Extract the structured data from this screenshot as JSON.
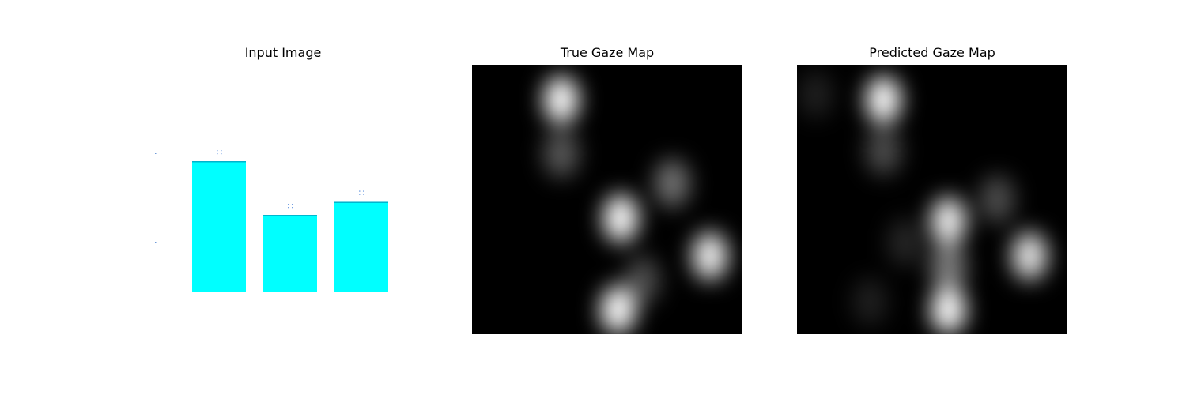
{
  "figure": {
    "titles": [
      "Input Image",
      "True Gaze Map",
      "Predicted Gaze Map"
    ]
  },
  "colors": {
    "bar_fill": "#00ffff",
    "bar_top_edge": "#00b3cc",
    "marker_blue": "#3a78d6",
    "heatmap_background": "#000000",
    "heatmap_hot": "#ffffff"
  },
  "chart_data": [
    {
      "type": "bar",
      "title": "Input Image",
      "categories": [
        "",
        "",
        ""
      ],
      "values": [
        1.0,
        0.59,
        0.69
      ],
      "axes_visible": false
    },
    {
      "type": "heatmap",
      "title": "True Gaze Map",
      "colormap": "gray",
      "blobs": [
        {
          "x": 0.33,
          "y": 0.13,
          "intensity": 1.0
        },
        {
          "x": 0.33,
          "y": 0.33,
          "intensity": 0.35
        },
        {
          "x": 0.55,
          "y": 0.57,
          "intensity": 1.0
        },
        {
          "x": 0.74,
          "y": 0.44,
          "intensity": 0.45
        },
        {
          "x": 0.88,
          "y": 0.71,
          "intensity": 0.95
        },
        {
          "x": 0.54,
          "y": 0.91,
          "intensity": 1.0
        },
        {
          "x": 0.63,
          "y": 0.8,
          "intensity": 0.3
        }
      ]
    },
    {
      "type": "heatmap",
      "title": "Predicted Gaze Map",
      "colormap": "gray",
      "blobs": [
        {
          "x": 0.32,
          "y": 0.13,
          "intensity": 1.0
        },
        {
          "x": 0.32,
          "y": 0.32,
          "intensity": 0.3
        },
        {
          "x": 0.56,
          "y": 0.58,
          "intensity": 0.95
        },
        {
          "x": 0.56,
          "y": 0.91,
          "intensity": 1.0
        },
        {
          "x": 0.56,
          "y": 0.75,
          "intensity": 0.5
        },
        {
          "x": 0.86,
          "y": 0.71,
          "intensity": 0.9
        },
        {
          "x": 0.74,
          "y": 0.5,
          "intensity": 0.3
        },
        {
          "x": 0.07,
          "y": 0.11,
          "intensity": 0.12
        },
        {
          "x": 0.4,
          "y": 0.66,
          "intensity": 0.15
        },
        {
          "x": 0.27,
          "y": 0.88,
          "intensity": 0.12
        }
      ]
    }
  ]
}
